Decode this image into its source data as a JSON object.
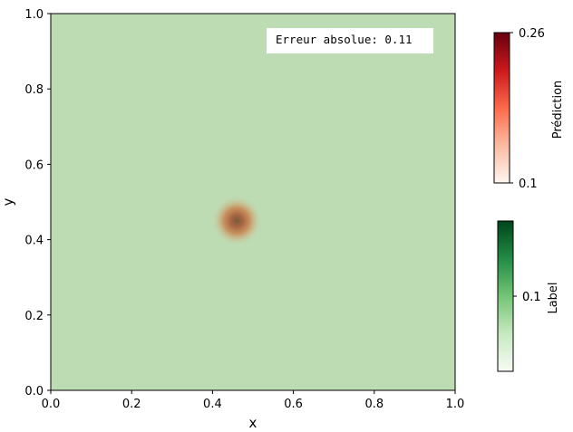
{
  "chart_data": {
    "type": "heatmap",
    "xlabel": "x",
    "ylabel": "y",
    "xlim": [
      0.0,
      1.0
    ],
    "ylim": [
      0.0,
      1.0
    ],
    "x_ticks": [
      "0.0",
      "0.2",
      "0.4",
      "0.6",
      "0.8",
      "1.0"
    ],
    "y_ticks": [
      "0.0",
      "0.2",
      "0.4",
      "0.6",
      "0.8",
      "1.0"
    ],
    "grid": false,
    "background_label_color": "#bddcb4",
    "blob": {
      "center_x": 0.46,
      "center_y": 0.45,
      "sigma": 0.045,
      "color": "#b45a37"
    },
    "annotation": "Erreur absolue: 0.11",
    "annotation_position": "top-right",
    "colorbars": [
      {
        "label": "Prédiction",
        "cmap": "Reds",
        "min_label": "0.1",
        "max_label": "0.26",
        "min": 0.1,
        "max": 0.26
      },
      {
        "label": "Label",
        "cmap": "Greens",
        "tick_label": "0.1",
        "tick_value": 0.1,
        "tick_overlay": "0.1"
      }
    ]
  }
}
